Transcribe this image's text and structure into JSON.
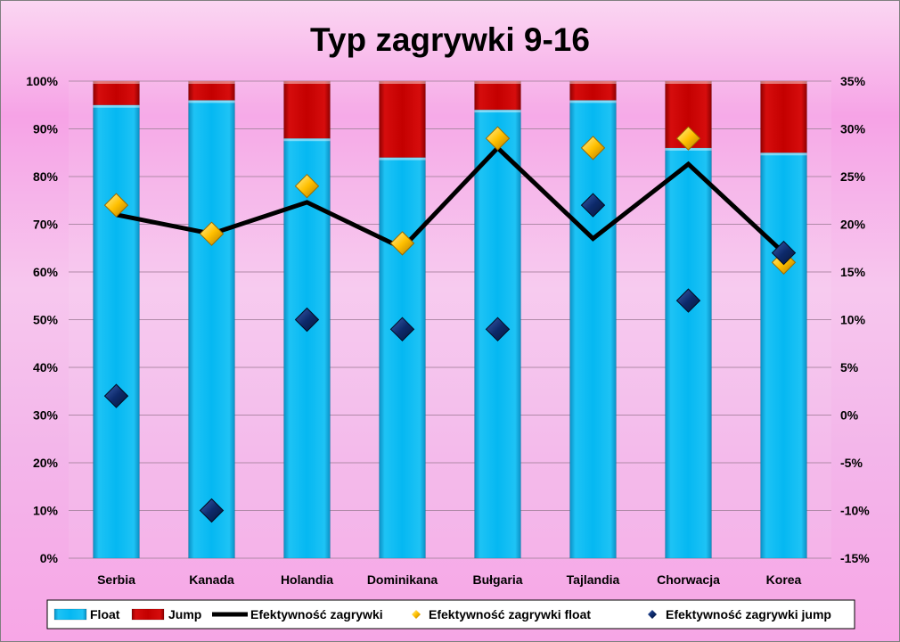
{
  "chart_data": {
    "type": "bar",
    "title": "Typ zagrywki 9-16",
    "categories": [
      "Serbia",
      "Kanada",
      "Holandia",
      "Dominikana",
      "Bułgaria",
      "Tajlandia",
      "Chorwacja",
      "Korea"
    ],
    "stacked": true,
    "series": [
      {
        "name": "Float",
        "type": "bar",
        "axis": "left",
        "color": "#00b4f0",
        "values": [
          95,
          96,
          88,
          84,
          94,
          96,
          86,
          85
        ]
      },
      {
        "name": "Jump",
        "type": "bar",
        "axis": "left",
        "color": "#c00000",
        "values": [
          5,
          4,
          12,
          16,
          6,
          4,
          14,
          15
        ]
      },
      {
        "name": "Efektywność zagrywki",
        "type": "line",
        "axis": "right",
        "color": "#000000",
        "values": [
          21,
          19,
          22.3,
          17.5,
          28,
          18.5,
          26.3,
          17
        ]
      },
      {
        "name": "Efektywność zagrywki float",
        "type": "scatter",
        "axis": "right",
        "color": "#ffc000",
        "values": [
          22,
          19,
          24,
          18,
          29,
          28,
          29,
          16
        ]
      },
      {
        "name": "Efektywność zagrywki jump",
        "type": "scatter",
        "axis": "right",
        "color": "#0d2a6b",
        "values": [
          2,
          -10,
          10,
          9,
          9,
          22,
          12,
          17
        ]
      }
    ],
    "y_left": {
      "ylim": [
        0,
        100
      ],
      "ticks": [
        "0%",
        "10%",
        "20%",
        "30%",
        "40%",
        "50%",
        "60%",
        "70%",
        "80%",
        "90%",
        "100%"
      ]
    },
    "y_right": {
      "ylim": [
        -15,
        35
      ],
      "ticks": [
        "-15%",
        "-10%",
        "-5%",
        "0%",
        "5%",
        "10%",
        "15%",
        "20%",
        "25%",
        "30%",
        "35%"
      ]
    },
    "grid": true,
    "legend": "bottom"
  }
}
